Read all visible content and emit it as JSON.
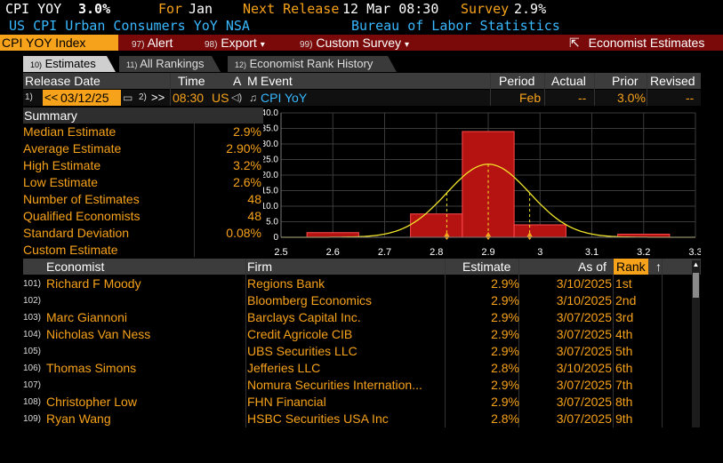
{
  "header": {
    "ticker": "CPI YOY",
    "value": "3.0%",
    "for_label": "For",
    "for_value": "Jan",
    "next_release_label": "Next Release",
    "next_release_value": "12 Mar 08:30",
    "survey_label": "Survey",
    "survey_value": "2.9%",
    "subtitle": "US CPI Urban Consumers YoY NSA",
    "source": "Bureau of Labor Statistics"
  },
  "toolbar": {
    "index_label": "CPI YOY Index",
    "alert_num": "97)",
    "alert_label": "Alert",
    "export_num": "98)",
    "export_label": "Export",
    "custom_num": "99)",
    "custom_label": "Custom Survey",
    "economist_label": "Economist Estimates"
  },
  "tabs": [
    {
      "num": "10)",
      "label": "Estimates"
    },
    {
      "num": "11)",
      "label": "All Rankings"
    },
    {
      "num": "12)",
      "label": "Economist Rank History"
    }
  ],
  "release": {
    "headers": {
      "release_date": "Release Date",
      "time": "Time",
      "a": "A",
      "m": "M",
      "event": "Event",
      "period": "Period",
      "actual": "Actual",
      "prior": "Prior",
      "revised": "Revised"
    },
    "prev_num": "1)",
    "date": "03/12/25",
    "next_num": "2)",
    "time": "08:30",
    "country": "US",
    "event": "CPI YoY",
    "period": "Feb",
    "actual": "--",
    "prior": "3.0%",
    "revised": "--"
  },
  "summary": {
    "title": "Summary",
    "rows": [
      {
        "label": "Median Estimate",
        "value": "2.9%"
      },
      {
        "label": "Average Estimate",
        "value": "2.90%"
      },
      {
        "label": "High Estimate",
        "value": "3.2%"
      },
      {
        "label": "Low Estimate",
        "value": "2.6%"
      },
      {
        "label": "Number of Estimates",
        "value": "48"
      },
      {
        "label": "Qualified Economists",
        "value": "48"
      },
      {
        "label": "Standard Deviation",
        "value": "0.08%"
      },
      {
        "label": "Custom Estimate",
        "value": ""
      }
    ]
  },
  "chart_data": {
    "type": "bar",
    "x": [
      2.6,
      2.7,
      2.8,
      2.9,
      3.0,
      3.1,
      3.2
    ],
    "values": [
      1.5,
      0.0,
      7.5,
      34.0,
      4.0,
      0.0,
      1.0
    ],
    "xlim": [
      2.5,
      3.3
    ],
    "ylim": [
      0,
      40
    ],
    "xticks": [
      "2.5",
      "2.6",
      "2.7",
      "2.8",
      "2.9",
      "3",
      "3.1",
      "3.2",
      "3.3"
    ],
    "yticks": [
      "0",
      "5.0",
      "10.0",
      "15.0",
      "20.0",
      "25.0",
      "30.0",
      "35.0",
      "40.0"
    ],
    "curve": {
      "mean": 2.9,
      "sd": 0.08,
      "peak": 23.5
    },
    "markers": [
      2.82,
      2.9,
      2.98
    ],
    "grid": true,
    "colors": {
      "bar": "#b51212",
      "bar_edge": "#ff4a4a",
      "curve": "#f2e52a",
      "marker": "#f7a21b",
      "grid": "#3b3b3b"
    }
  },
  "grid": {
    "headers": {
      "economist": "Economist",
      "firm": "Firm",
      "estimate": "Estimate",
      "asof": "As of",
      "rank": "Rank"
    },
    "rows": [
      {
        "idx": "101)",
        "name": "Richard F Moody",
        "firm": "Regions Bank",
        "estimate": "2.9%",
        "asof": "3/10/2025",
        "rank": "1st"
      },
      {
        "idx": "102)",
        "name": "",
        "firm": "Bloomberg Economics",
        "estimate": "2.9%",
        "asof": "3/10/2025",
        "rank": "2nd"
      },
      {
        "idx": "103)",
        "name": "Marc Giannoni",
        "firm": "Barclays Capital Inc.",
        "estimate": "2.9%",
        "asof": "3/07/2025",
        "rank": "3rd"
      },
      {
        "idx": "104)",
        "name": "Nicholas Van Ness",
        "firm": "Credit Agricole CIB",
        "estimate": "2.9%",
        "asof": "3/07/2025",
        "rank": "4th"
      },
      {
        "idx": "105)",
        "name": "",
        "firm": "UBS Securities LLC",
        "estimate": "2.9%",
        "asof": "3/07/2025",
        "rank": "5th"
      },
      {
        "idx": "106)",
        "name": "Thomas Simons",
        "firm": "Jefferies LLC",
        "estimate": "2.8%",
        "asof": "3/10/2025",
        "rank": "6th"
      },
      {
        "idx": "107)",
        "name": "",
        "firm": "Nomura Securities Internation...",
        "estimate": "2.9%",
        "asof": "3/07/2025",
        "rank": "7th"
      },
      {
        "idx": "108)",
        "name": "Christopher Low",
        "firm": "FHN Financial",
        "estimate": "2.9%",
        "asof": "3/07/2025",
        "rank": "8th"
      },
      {
        "idx": "109)",
        "name": "Ryan Wang",
        "firm": "HSBC Securities USA Inc",
        "estimate": "2.8%",
        "asof": "3/07/2025",
        "rank": "9th"
      }
    ]
  },
  "icons": {
    "export_dropdown": "▾",
    "custom_dropdown": "▾",
    "external": "⇱",
    "sort": "↑",
    "calendar": "▭",
    "prev": "<<",
    "next": ">>"
  }
}
